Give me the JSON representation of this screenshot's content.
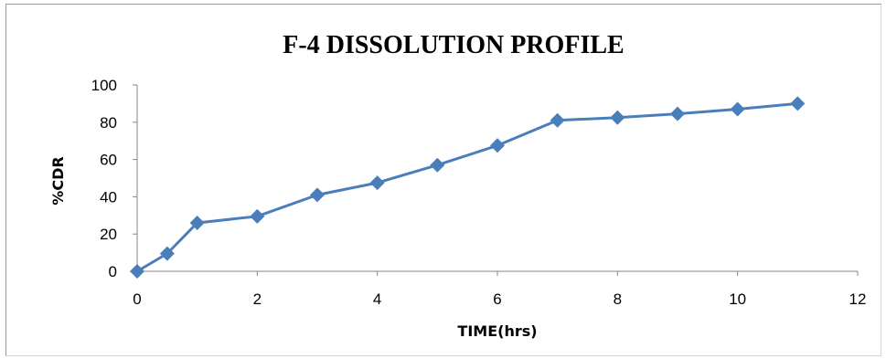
{
  "chart_data": {
    "type": "line",
    "title": "F-4 DISSOLUTION PROFILE",
    "xlabel": "TIME(hrs)",
    "ylabel": "%CDR",
    "xlim": [
      0,
      12
    ],
    "ylim": [
      0,
      100
    ],
    "x_ticks": [
      0,
      2,
      4,
      6,
      8,
      10,
      12
    ],
    "y_ticks": [
      0,
      20,
      40,
      60,
      80,
      100
    ],
    "grid": false,
    "legend": "none",
    "marker": "diamond",
    "series": [
      {
        "color": "#4A7EBB",
        "x": [
          0,
          0.5,
          1,
          2,
          3,
          4,
          5,
          6,
          7,
          8,
          9,
          10,
          11
        ],
        "y": [
          0,
          9.5,
          26,
          29.5,
          41,
          47.5,
          57,
          67.5,
          81,
          82.5,
          84.5,
          87,
          90
        ]
      }
    ]
  }
}
